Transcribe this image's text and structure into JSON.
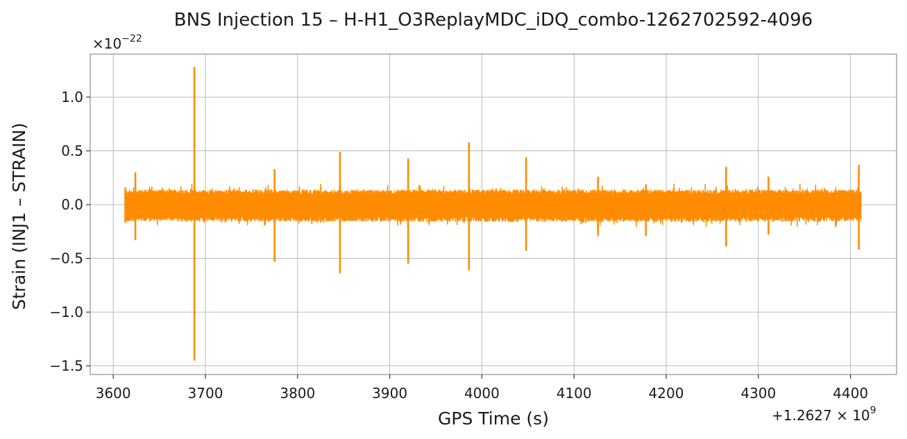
{
  "chart_data": {
    "type": "line",
    "title": "BNS Injection 15 – H-H1_O3ReplayMDC_iDQ_combo-1262702592-4096",
    "xlabel": "GPS Time (s)",
    "ylabel": "Strain (INJ1 – STRAIN)",
    "x_offset_label": "+1.2627 × 10",
    "x_offset_exponent": "9",
    "y_multiplier_label": "×10",
    "y_multiplier_exponent": "−22",
    "xlim": [
      3575,
      4450
    ],
    "ylim": [
      -1.58,
      1.4
    ],
    "grid": true,
    "x_ticks": [
      3600,
      3700,
      3800,
      3900,
      4000,
      4100,
      4200,
      4300,
      4400
    ],
    "x_tick_labels": [
      "3600",
      "3700",
      "3800",
      "3900",
      "4000",
      "4100",
      "4200",
      "4300",
      "4400"
    ],
    "y_ticks": [
      -1.5,
      -1.0,
      -0.5,
      0.0,
      0.5,
      1.0
    ],
    "y_tick_labels": [
      "−1.5",
      "−1.0",
      "−0.5",
      "0.0",
      "0.5",
      "1.0"
    ],
    "series": [
      {
        "color": "#ff8c00",
        "x_range": [
          3613,
          4411
        ],
        "baseline_upper": 0.14,
        "baseline_lower": -0.16,
        "spikes": [
          {
            "x": 3624,
            "max": 0.3,
            "min": -0.33
          },
          {
            "x": 3688,
            "max": 1.28,
            "min": -1.45
          },
          {
            "x": 3775,
            "max": 0.33,
            "min": -0.53
          },
          {
            "x": 3846,
            "max": 0.49,
            "min": -0.64
          },
          {
            "x": 3920,
            "max": 0.43,
            "min": -0.55
          },
          {
            "x": 3986,
            "max": 0.58,
            "min": -0.61
          },
          {
            "x": 4048,
            "max": 0.44,
            "min": -0.43
          },
          {
            "x": 4126,
            "max": 0.26,
            "min": -0.29
          },
          {
            "x": 4178,
            "max": 0.19,
            "min": -0.29
          },
          {
            "x": 4265,
            "max": 0.35,
            "min": -0.39
          },
          {
            "x": 4311,
            "max": 0.26,
            "min": -0.28
          },
          {
            "x": 4409,
            "max": 0.37,
            "min": -0.42
          }
        ]
      }
    ]
  }
}
